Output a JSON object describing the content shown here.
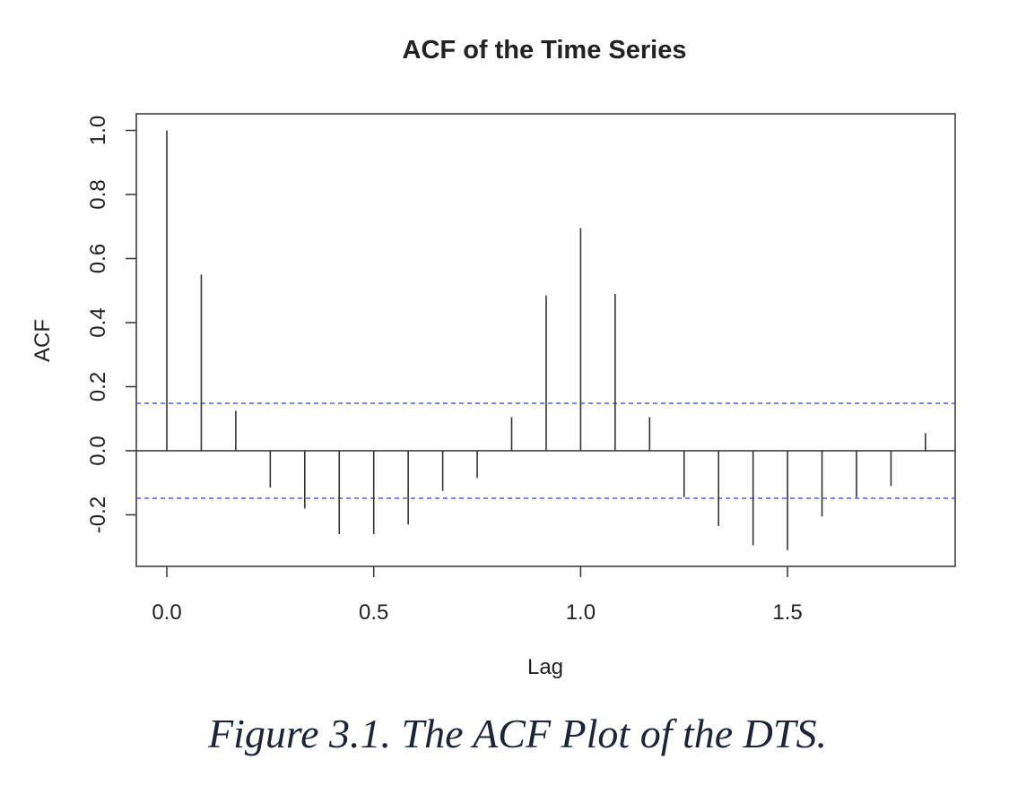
{
  "chart_data": {
    "type": "bar",
    "title": "ACF of the Time Series",
    "xlabel": "Lag",
    "ylabel": "ACF",
    "xlim": [
      -0.07,
      1.91
    ],
    "ylim": [
      -0.36,
      1.05
    ],
    "x_ticks": [
      {
        "value": 0.0,
        "label": "0.0"
      },
      {
        "value": 0.5,
        "label": "0.5"
      },
      {
        "value": 1.0,
        "label": "1.0"
      },
      {
        "value": 1.5,
        "label": "1.5"
      }
    ],
    "y_ticks": [
      {
        "value": -0.2,
        "label": "-0.2"
      },
      {
        "value": 0.0,
        "label": "0.0"
      },
      {
        "value": 0.2,
        "label": "0.2"
      },
      {
        "value": 0.4,
        "label": "0.4"
      },
      {
        "value": 0.6,
        "label": "0.6"
      },
      {
        "value": 0.8,
        "label": "0.8"
      },
      {
        "value": 1.0,
        "label": "1.0"
      }
    ],
    "lags": [
      0.0,
      0.0833,
      0.1667,
      0.25,
      0.3333,
      0.4167,
      0.5,
      0.5833,
      0.6667,
      0.75,
      0.8333,
      0.9167,
      1.0,
      1.0833,
      1.1667,
      1.25,
      1.3333,
      1.4167,
      1.5,
      1.5833,
      1.6667,
      1.75,
      1.8333
    ],
    "values": [
      1.0,
      0.55,
      0.125,
      -0.115,
      -0.18,
      -0.26,
      -0.26,
      -0.23,
      -0.125,
      -0.085,
      0.105,
      0.485,
      0.695,
      0.49,
      0.105,
      -0.145,
      -0.235,
      -0.295,
      -0.31,
      -0.205,
      -0.145,
      -0.11,
      0.055
    ],
    "confidence_bounds": [
      0.148,
      -0.148
    ],
    "colors": {
      "spike": "#333333",
      "confidence": "#4a4ae6",
      "axis": "#333333",
      "text": "#222222"
    },
    "grid": false,
    "legend": "none"
  },
  "caption": "Figure 3.1. The ACF Plot of the DTS."
}
